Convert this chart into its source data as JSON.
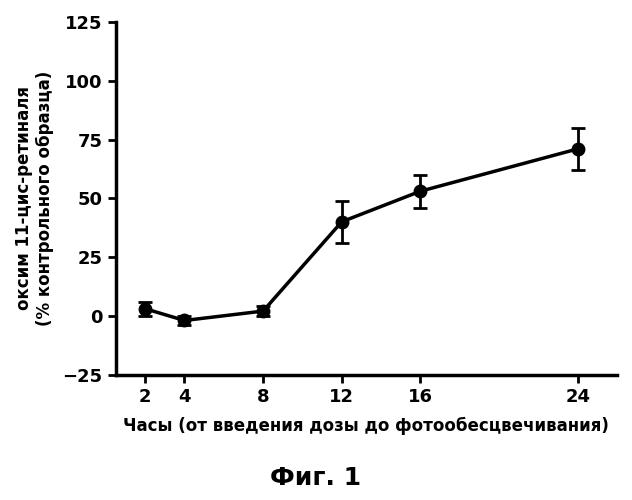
{
  "x": [
    2,
    4,
    8,
    12,
    16,
    24
  ],
  "y": [
    3,
    -2,
    2,
    40,
    53,
    71
  ],
  "yerr": [
    3,
    2,
    2,
    9,
    7,
    9
  ],
  "xlabel": "Часы (от введения дозы до фотообесцвечивания)",
  "ylabel_line1": "оксим 11-цис-ретиналя",
  "ylabel_line2": "(% контрольного образца)",
  "figure_label": "Фиг. 1",
  "xlim": [
    0.5,
    26
  ],
  "ylim": [
    -25,
    125
  ],
  "yticks": [
    -25,
    0,
    25,
    50,
    75,
    100,
    125
  ],
  "xticks": [
    2,
    4,
    8,
    12,
    16,
    24
  ],
  "line_color": "#000000",
  "marker": "o",
  "marker_size": 9,
  "line_width": 2.5,
  "background_color": "#ffffff",
  "xlabel_fontsize": 12,
  "ylabel_fontsize": 12,
  "tick_fontsize": 13,
  "figure_label_fontsize": 18,
  "capsize": 5
}
